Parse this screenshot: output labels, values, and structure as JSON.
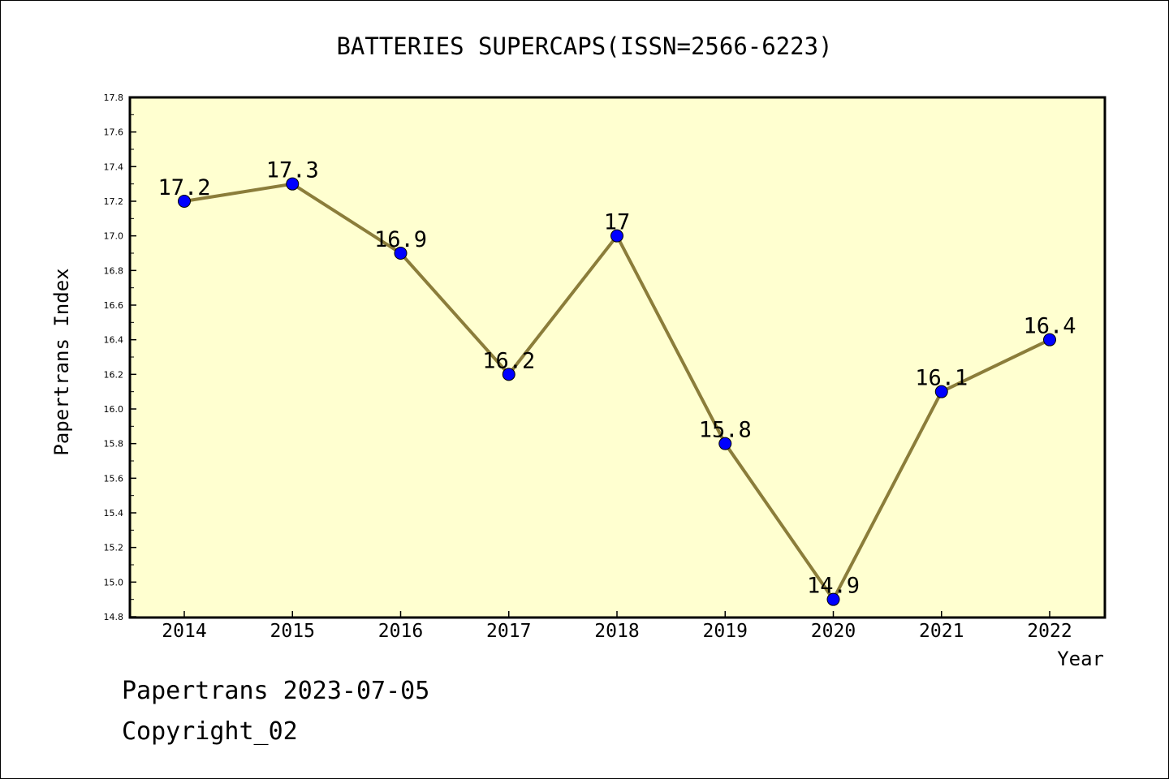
{
  "chart_data": {
    "type": "line",
    "title": "BATTERIES SUPERCAPS(ISSN=2566-6223)",
    "xlabel": "Year",
    "ylabel": "Papertrans Index",
    "categories": [
      "2014",
      "2015",
      "2016",
      "2017",
      "2018",
      "2019",
      "2020",
      "2021",
      "2022"
    ],
    "values": [
      17.2,
      17.3,
      16.9,
      16.2,
      17.0,
      15.8,
      14.9,
      16.1,
      16.4
    ],
    "data_labels": [
      "17.2",
      "17.3",
      "16.9",
      "16.2",
      "17",
      "15.8",
      "14.9",
      "16.1",
      "16.4"
    ],
    "ylim": [
      14.8,
      17.8
    ],
    "yticks": [
      "14.8",
      "15.0",
      "15.2",
      "15.4",
      "15.6",
      "15.8",
      "16.0",
      "16.2",
      "16.4",
      "16.6",
      "16.8",
      "17.0",
      "17.2",
      "17.4",
      "17.6",
      "17.8"
    ],
    "grid": false,
    "colors": {
      "plot_background": "#ffffd0",
      "line": "#8b7d3a",
      "marker": "#0000ff"
    }
  },
  "footer": {
    "date_text": "Papertrans 2023-07-05",
    "copyright_text": "Copyright_02"
  }
}
